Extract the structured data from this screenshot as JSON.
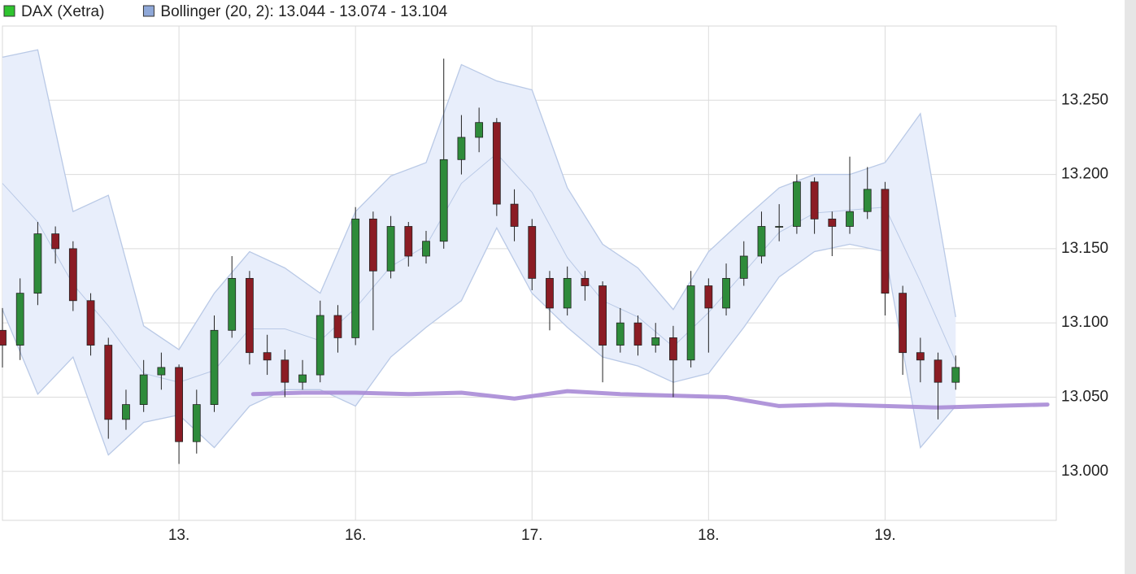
{
  "chart_data": {
    "type": "candlestick",
    "series": [
      {
        "name": "DAX (Xetra)",
        "color": "#2fc42f",
        "up_color": "#2e8b3a",
        "down_color": "#8b1c24",
        "x": [
          0.0,
          0.1,
          0.2,
          0.3,
          0.4,
          0.5,
          0.6,
          0.7,
          0.8,
          0.9,
          1.0,
          1.1,
          1.2,
          1.3,
          1.4,
          1.5,
          1.6,
          1.7,
          1.8,
          1.9,
          2.0,
          2.1,
          2.2,
          2.3,
          2.4,
          2.5,
          2.6,
          2.7,
          2.8,
          2.9,
          3.0,
          3.1,
          3.2,
          3.3,
          3.4,
          3.5,
          3.6,
          3.7,
          3.8,
          3.9,
          4.0,
          4.1,
          4.2,
          4.3,
          4.4,
          4.5,
          4.6,
          4.7,
          4.8,
          4.9,
          5.0,
          5.1,
          5.2,
          5.3,
          5.4
        ],
        "open": [
          13095,
          13085,
          13120,
          13160,
          13150,
          13115,
          13085,
          13035,
          13045,
          13065,
          13070,
          13020,
          13045,
          13095,
          13130,
          13080,
          13075,
          13060,
          13065,
          13105,
          13090,
          13170,
          13135,
          13165,
          13145,
          13155,
          13210,
          13225,
          13235,
          13180,
          13165,
          13130,
          13110,
          13130,
          13125,
          13085,
          13100,
          13085,
          13090,
          13075,
          13125,
          13110,
          13130,
          13145,
          13165,
          13165,
          13195,
          13170,
          13165,
          13175,
          13190,
          13120,
          13080,
          13075,
          13060
        ],
        "high": [
          13110,
          13130,
          13168,
          13165,
          13155,
          13120,
          13090,
          13055,
          13075,
          13080,
          13072,
          13055,
          13105,
          13145,
          13135,
          13092,
          13082,
          13075,
          13115,
          13112,
          13178,
          13175,
          13172,
          13168,
          13162,
          13278,
          13240,
          13245,
          13238,
          13190,
          13170,
          13135,
          13138,
          13135,
          13128,
          13110,
          13105,
          13100,
          13098,
          13135,
          13130,
          13140,
          13155,
          13175,
          13180,
          13200,
          13198,
          13175,
          13212,
          13205,
          13195,
          13125,
          13090,
          13080,
          13078
        ],
        "low": [
          13070,
          13075,
          13112,
          13140,
          13108,
          13078,
          13022,
          13028,
          13040,
          13055,
          13005,
          13012,
          13040,
          13090,
          13072,
          13065,
          13050,
          13055,
          13060,
          13080,
          13085,
          13095,
          13130,
          13138,
          13140,
          13150,
          13200,
          13215,
          13172,
          13155,
          13122,
          13095,
          13105,
          13115,
          13060,
          13080,
          13078,
          13080,
          13050,
          13070,
          13080,
          13105,
          13125,
          13140,
          13155,
          13160,
          13160,
          13145,
          13160,
          13170,
          13105,
          13065,
          13060,
          13035,
          13055
        ],
        "close": [
          13085,
          13120,
          13160,
          13150,
          13115,
          13085,
          13035,
          13045,
          13065,
          13070,
          13020,
          13045,
          13095,
          13130,
          13080,
          13075,
          13060,
          13065,
          13105,
          13090,
          13170,
          13135,
          13165,
          13145,
          13155,
          13210,
          13225,
          13235,
          13180,
          13165,
          13130,
          13110,
          13130,
          13125,
          13085,
          13100,
          13085,
          13090,
          13075,
          13125,
          13110,
          13130,
          13145,
          13165,
          13165,
          13195,
          13170,
          13165,
          13175,
          13190,
          13120,
          13080,
          13075,
          13060,
          13070
        ]
      }
    ],
    "bands": {
      "name": "Bollinger (20, 2): 13.044 - 13.074 - 13.104",
      "color": "#8fa8d8",
      "fill": "#e8eefb",
      "line_color": "#b9c9e6",
      "x": [
        0.0,
        0.2,
        0.4,
        0.6,
        0.8,
        1.0,
        1.2,
        1.4,
        1.6,
        1.8,
        2.0,
        2.2,
        2.4,
        2.6,
        2.8,
        3.0,
        3.2,
        3.4,
        3.6,
        3.8,
        4.0,
        4.2,
        4.4,
        4.6,
        4.8,
        5.0,
        5.2,
        5.4
      ],
      "upper": [
        13279,
        13284,
        13175,
        13186,
        13098,
        13082,
        13120,
        13148,
        13137,
        13120,
        13175,
        13199,
        13208,
        13274,
        13263,
        13257,
        13191,
        13153,
        13137,
        13109,
        13148,
        13170,
        13191,
        13200,
        13200,
        13208,
        13241,
        13104
      ],
      "middle": [
        13194,
        13168,
        13126,
        13098,
        13066,
        13060,
        13068,
        13096,
        13096,
        13088,
        13110,
        13138,
        13152,
        13194,
        13214,
        13188,
        13144,
        13115,
        13104,
        13084,
        13107,
        13134,
        13161,
        13174,
        13176,
        13178,
        13128,
        13074
      ],
      "lower": [
        13109,
        13052,
        13077,
        13011,
        13033,
        13038,
        13016,
        13044,
        13055,
        13055,
        13044,
        13077,
        13097,
        13115,
        13164,
        13120,
        13097,
        13077,
        13071,
        13060,
        13066,
        13097,
        13131,
        13148,
        13153,
        13148,
        13016,
        13044
      ]
    },
    "overlay": {
      "color": "#a88bd6",
      "x": [
        1.42,
        1.7,
        2.0,
        2.3,
        2.6,
        2.9,
        3.2,
        3.5,
        3.8,
        4.1,
        4.4,
        4.7,
        5.0,
        5.3,
        5.6,
        5.92
      ],
      "values": [
        13052,
        13053,
        13053,
        13052,
        13053,
        13049,
        13054,
        13052,
        13051,
        13050,
        13044,
        13045,
        13044,
        13043,
        13044,
        13045
      ]
    },
    "xlim": [
      0,
      5.97
    ],
    "xticks": [
      {
        "value": 1,
        "label": "13."
      },
      {
        "value": 2,
        "label": "16."
      },
      {
        "value": 3,
        "label": "17."
      },
      {
        "value": 4,
        "label": "18."
      },
      {
        "value": 5,
        "label": "19."
      }
    ],
    "ylim": [
      12967,
      13300
    ],
    "yticks": [
      {
        "value": 13000,
        "label": "13.000"
      },
      {
        "value": 13050,
        "label": "13.050"
      },
      {
        "value": 13100,
        "label": "13.100"
      },
      {
        "value": 13150,
        "label": "13.150"
      },
      {
        "value": 13200,
        "label": "13.200"
      },
      {
        "value": 13250,
        "label": "13.250"
      }
    ],
    "grid": true
  }
}
